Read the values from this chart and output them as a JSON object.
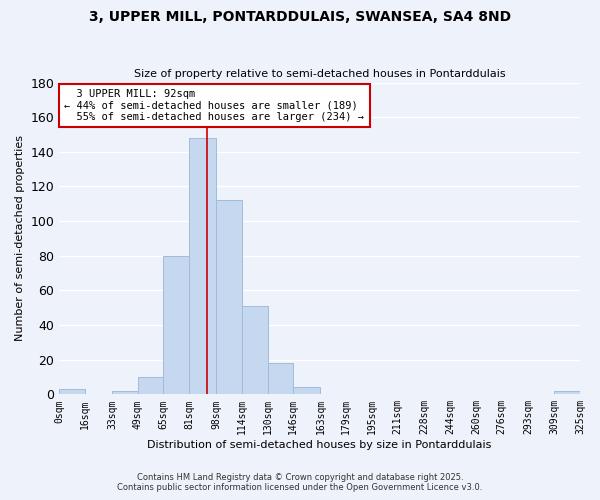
{
  "title": "3, UPPER MILL, PONTARDDULAIS, SWANSEA, SA4 8ND",
  "subtitle": "Size of property relative to semi-detached houses in Pontarddulais",
  "xlabel": "Distribution of semi-detached houses by size in Pontarddulais",
  "ylabel": "Number of semi-detached properties",
  "bar_color": "#c5d8f0",
  "bar_edge_color": "#a0bcd8",
  "background_color": "#eef2fa",
  "grid_color": "#ffffff",
  "bin_edges": [
    0,
    16,
    33,
    49,
    65,
    81,
    98,
    114,
    130,
    146,
    163,
    179,
    195,
    211,
    228,
    244,
    260,
    276,
    293,
    309,
    325
  ],
  "bin_labels": [
    "0sqm",
    "16sqm",
    "33sqm",
    "49sqm",
    "65sqm",
    "81sqm",
    "98sqm",
    "114sqm",
    "130sqm",
    "146sqm",
    "163sqm",
    "179sqm",
    "195sqm",
    "211sqm",
    "228sqm",
    "244sqm",
    "260sqm",
    "276sqm",
    "293sqm",
    "309sqm",
    "325sqm"
  ],
  "counts": [
    3,
    0,
    2,
    10,
    80,
    148,
    112,
    51,
    18,
    4,
    0,
    0,
    0,
    0,
    0,
    0,
    0,
    0,
    0,
    2
  ],
  "property_size": 92,
  "property_label": "3 UPPER MILL: 92sqm",
  "pct_smaller": 44,
  "n_smaller": 189,
  "pct_larger": 55,
  "n_larger": 234,
  "annotation_box_color": "#ffffff",
  "annotation_box_edge": "#cc0000",
  "vline_color": "#cc0000",
  "ylim": [
    0,
    180
  ],
  "yticks": [
    0,
    20,
    40,
    60,
    80,
    100,
    120,
    140,
    160,
    180
  ],
  "footer1": "Contains HM Land Registry data © Crown copyright and database right 2025.",
  "footer2": "Contains public sector information licensed under the Open Government Licence v3.0."
}
